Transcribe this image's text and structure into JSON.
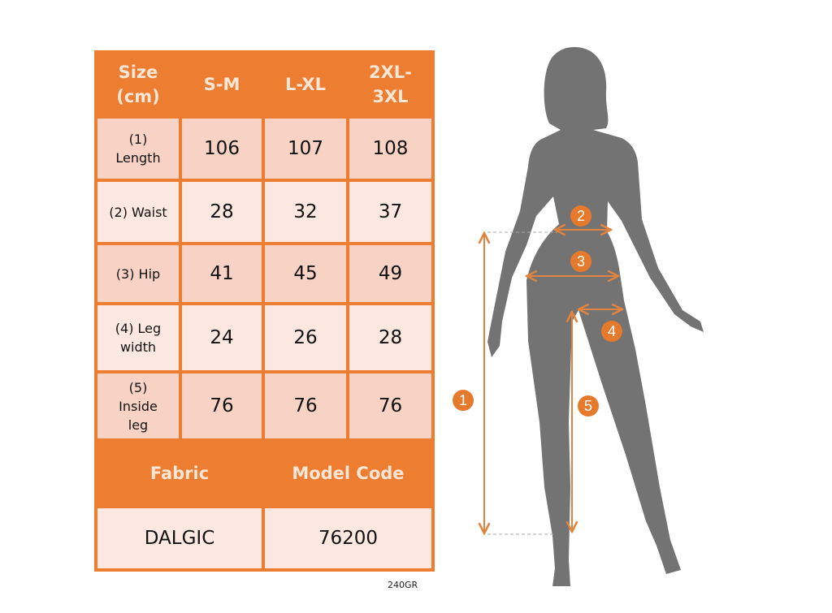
{
  "table": {
    "header": [
      "Size (cm)",
      "S-M",
      "L-XL",
      "2XL-3XL"
    ],
    "rows": [
      {
        "label": "(1) Length",
        "values": [
          "106",
          "107",
          "108"
        ]
      },
      {
        "label": "(2) Waist",
        "values": [
          "28",
          "32",
          "37"
        ]
      },
      {
        "label": "(3) Hip",
        "values": [
          "41",
          "45",
          "49"
        ]
      },
      {
        "label": "(4) Leg width",
        "values": [
          "24",
          "26",
          "28"
        ]
      },
      {
        "label": "(5) Inside leg",
        "values": [
          "76",
          "76",
          "76"
        ]
      }
    ],
    "footer_header": [
      "Fabric",
      "Model Code"
    ],
    "footer_values": [
      "DALGIC",
      "76200"
    ]
  },
  "note": "240GR",
  "markers": [
    "1",
    "2",
    "3",
    "4",
    "5"
  ],
  "colors": {
    "accent": "#ed7d31",
    "row_dark": "#f8d3c5",
    "row_light": "#fce8e1",
    "silhouette": "#737373"
  }
}
